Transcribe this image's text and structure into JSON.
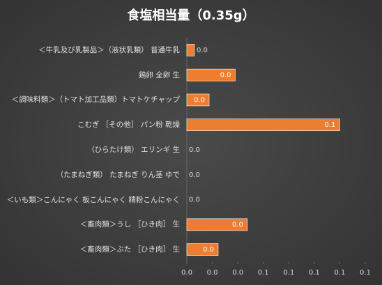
{
  "chart_data": {
    "type": "barh",
    "title": "食塩相当量（0.35g）",
    "categories": [
      "＜牛乳及び乳製品＞（液状乳類） 普通牛乳",
      "鶏卵 全卵 生",
      "＜調味料類＞（トマト加工品類）トマトケチャップ",
      "こむぎ ［その他］ パン粉 乾燥",
      "（ひらたけ類） エリンギ 生",
      "（たまねぎ類） たまねぎ りん茎 ゆで",
      "＜いも類＞こんにゃく 板こんにゃく 精粉こんにゃく",
      "＜畜肉類＞うし ［ひき肉］ 生",
      "＜畜肉類＞ぶた ［ひき肉］ 生"
    ],
    "values": [
      0.006,
      0.038,
      0.0175,
      0.12,
      0,
      0,
      0,
      0.0475,
      0.0246
    ],
    "value_labels": [
      "0.0",
      "0.0",
      "0.0",
      "0.1",
      "0.0",
      "0.0",
      "0.0",
      "0.0",
      "0.0"
    ],
    "color": "#ed7d31",
    "xlim": [
      0,
      0.14
    ],
    "xticks": [
      {
        "value": 0,
        "label": "0.0"
      },
      {
        "value": 0.02,
        "label": "0.0"
      },
      {
        "value": 0.04,
        "label": "0.0"
      },
      {
        "value": 0.06,
        "label": "0.1"
      },
      {
        "value": 0.08,
        "label": "0.1"
      },
      0.1,
      {
        "value": 0.12,
        "label": "0.1"
      },
      {
        "value": 0.14,
        "label": "0.1"
      }
    ],
    "grid": false
  }
}
